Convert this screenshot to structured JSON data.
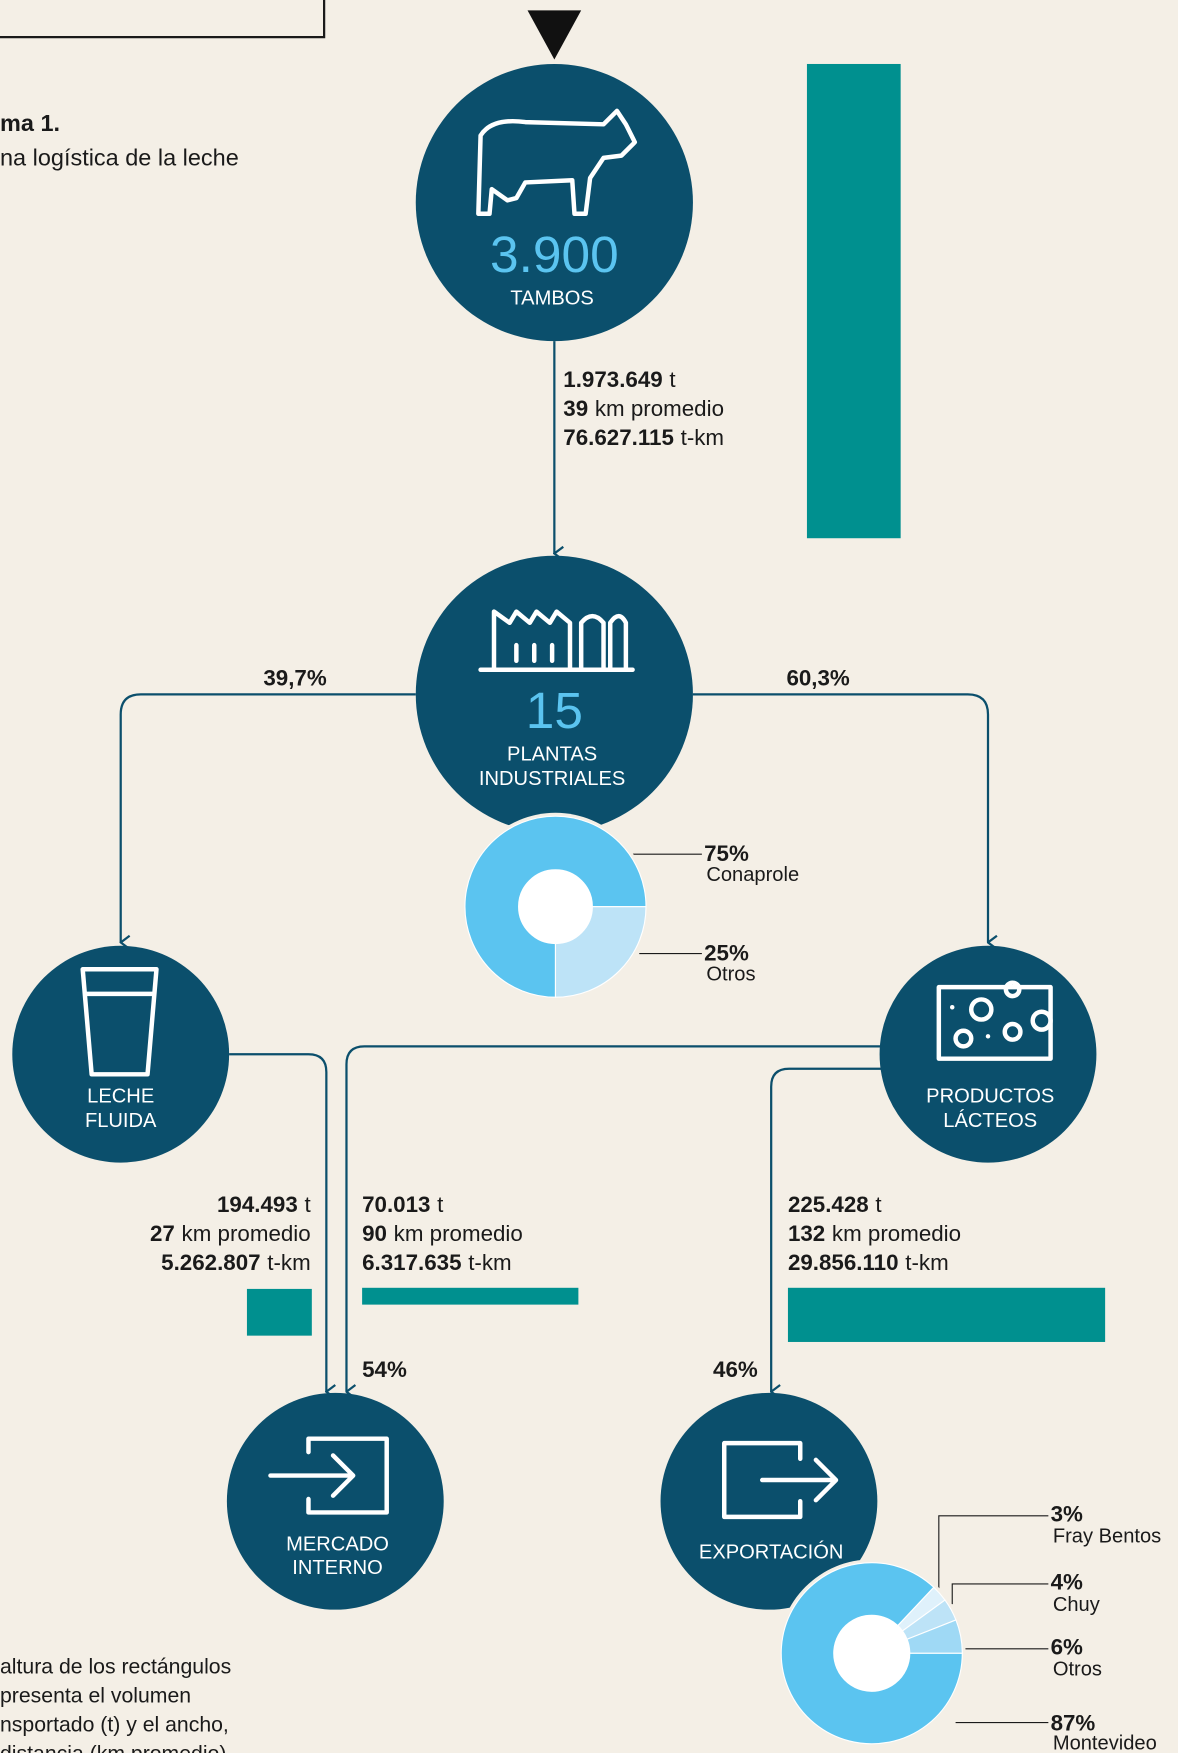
{
  "header": {
    "diagram_label": "ma 1.",
    "subtitle": "na logística de la leche"
  },
  "nodes": [
    {
      "number": "3.900",
      "label": [
        "TAMBOS"
      ]
    },
    {
      "number": "15",
      "label": [
        "PLANTAS",
        "INDUSTRIALES"
      ]
    },
    {
      "label": [
        "LECHE",
        "FLUIDA"
      ]
    },
    {
      "label": [
        "PRODUCTOS",
        "LÁCTEOS"
      ]
    },
    {
      "label": [
        "MERCADO",
        "INTERNO"
      ]
    },
    {
      "label": [
        "EXPORTACIÓN"
      ]
    }
  ],
  "units": {
    "t": "t",
    "km": "km promedio",
    "tkm": "t-km"
  },
  "flows": [
    {
      "tonnes": {
        "value": 1973649,
        "label": "1.973.649"
      },
      "km": 39,
      "tkm": {
        "value": 76627115,
        "label": "76.627.115"
      }
    },
    {
      "tonnes": {
        "value": 194493,
        "label": "194.493"
      },
      "km": 27,
      "tkm": {
        "value": 5262807,
        "label": "5.262.807"
      }
    },
    {
      "tonnes": {
        "value": 70013,
        "label": "70.013"
      },
      "km": 90,
      "tkm": {
        "value": 6317635,
        "label": "6.317.635"
      }
    },
    {
      "tonnes": {
        "value": 225428,
        "label": "225.428"
      },
      "km": 132,
      "tkm": {
        "value": 29856110,
        "label": "29.856.110"
      }
    }
  ],
  "bar_color": "#00908f",
  "shares": [
    "39,7%",
    "60,3%",
    "54%",
    "46%"
  ],
  "pies": [
    {
      "slices": [
        {
          "name": "Conaprole",
          "value": 75,
          "label": "75%",
          "color": "#5bc4f0"
        },
        {
          "name": "Otros",
          "value": 25,
          "label": "25%",
          "color": "#bde3f7"
        }
      ]
    },
    {
      "slices": [
        {
          "name": "Fray Bentos",
          "value": 3,
          "label": "3%",
          "color": "#dff1fb"
        },
        {
          "name": "Chuy",
          "value": 4,
          "label": "4%",
          "color": "#bde3f7"
        },
        {
          "name": "Otros",
          "value": 6,
          "label": "6%",
          "color": "#9fd9f5"
        },
        {
          "name": "Montevideo",
          "value": 87,
          "label": "87%",
          "color": "#5bc4f0"
        }
      ]
    }
  ],
  "note": [
    "altura de los rectángulos",
    "presenta el volumen",
    "nsportado (t) y el ancho,",
    "distancia (km promedio)"
  ]
}
